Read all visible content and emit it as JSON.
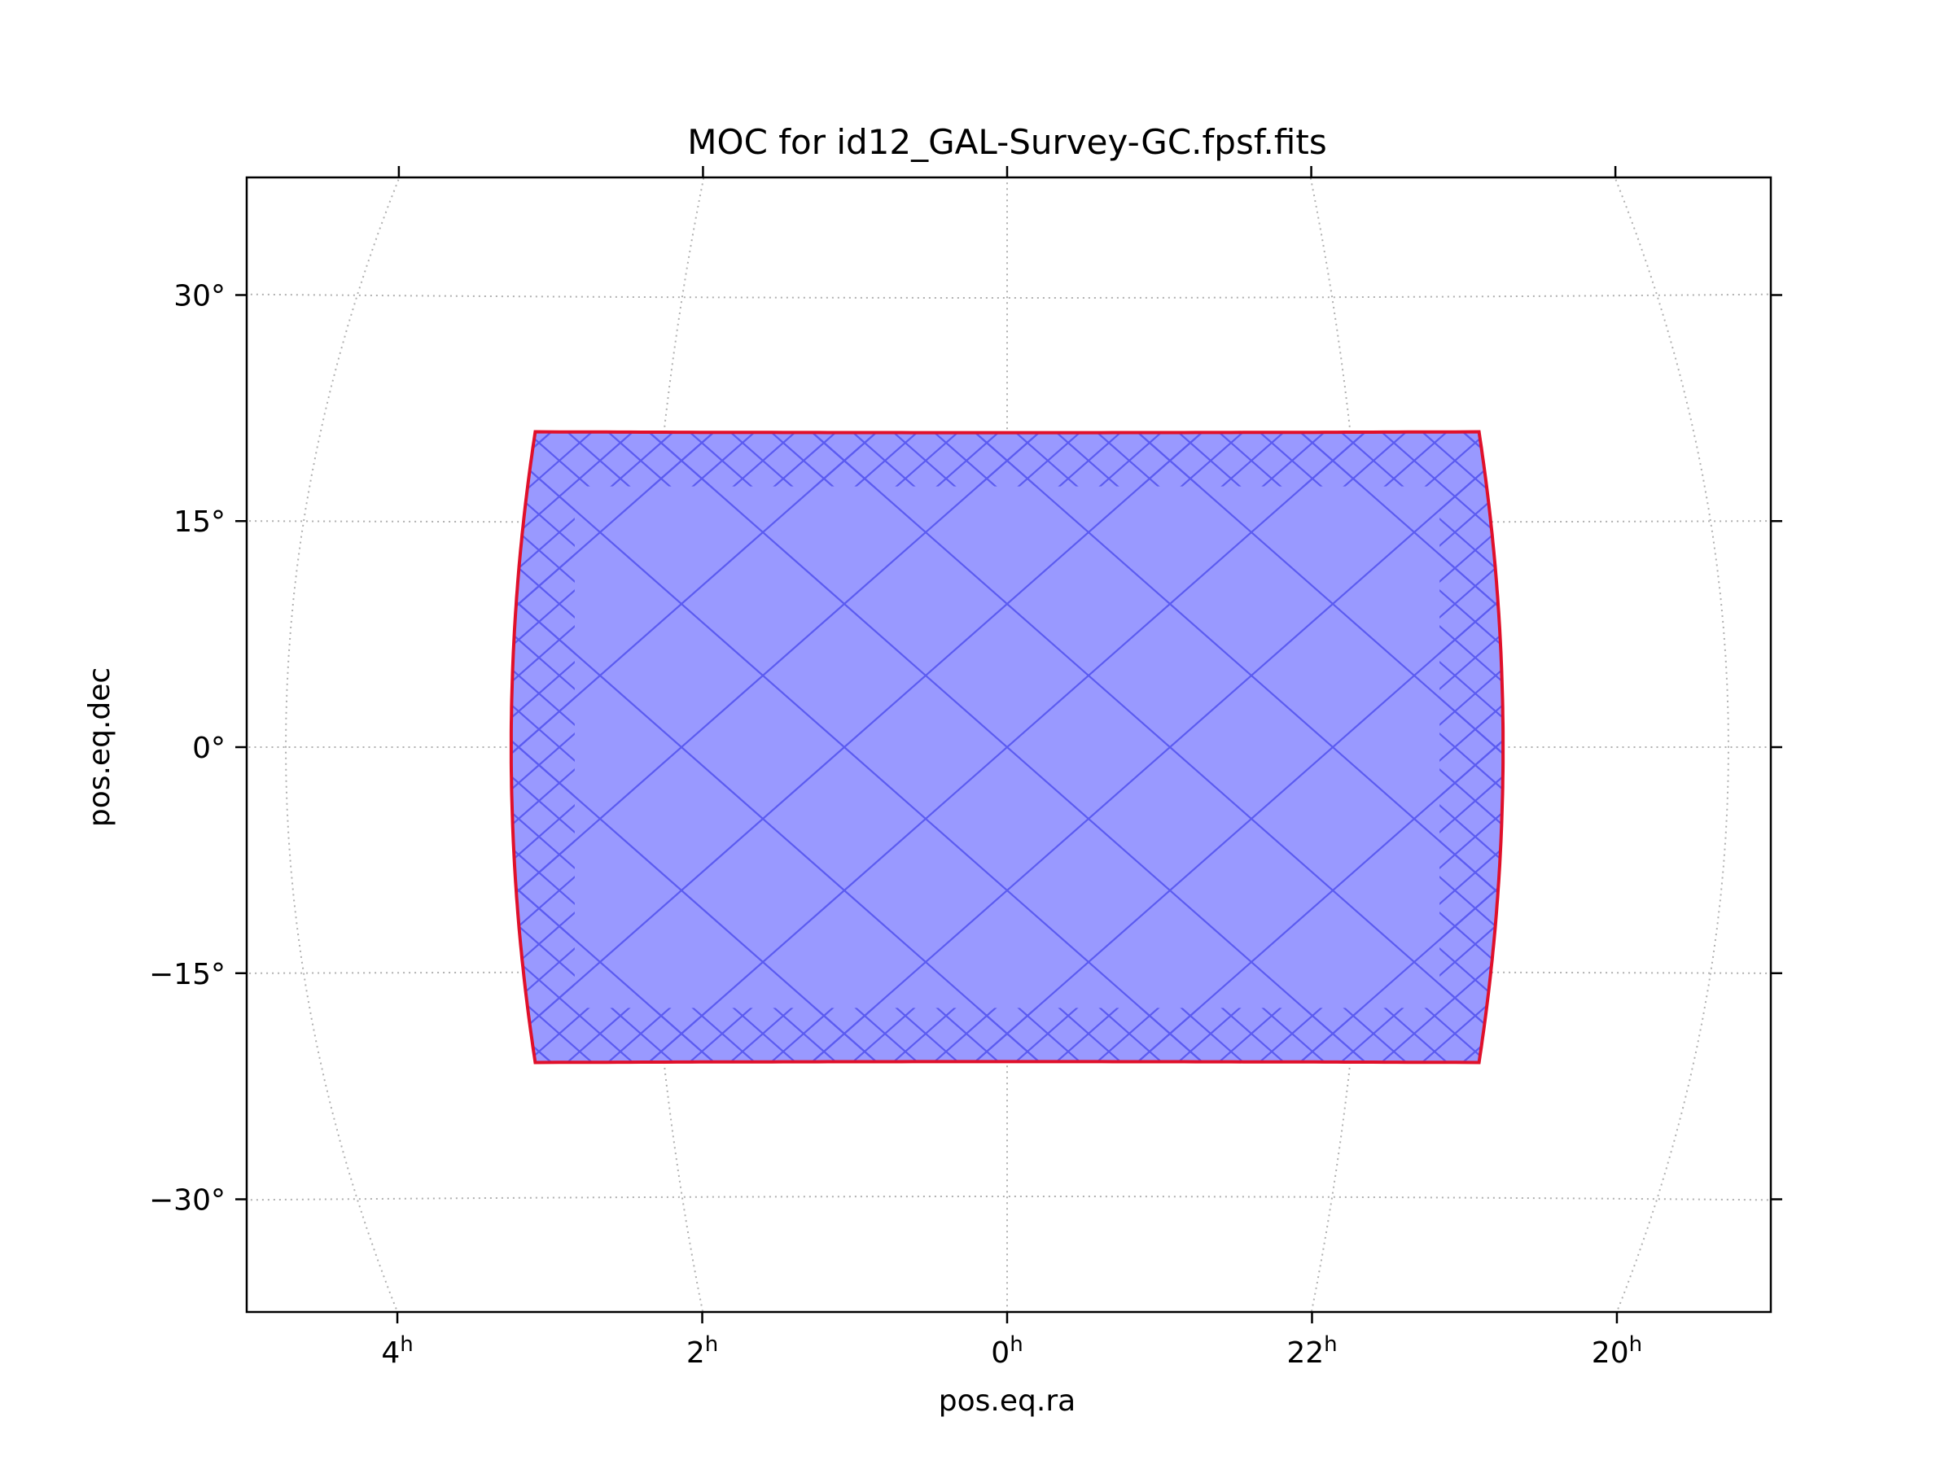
{
  "chart_data": {
    "type": "area",
    "title": "MOC for id12_GAL-Survey-GC.fpsf.fits",
    "xlabel": "pos.eq.ra",
    "ylabel": "pos.eq.dec",
    "projection": "cartesian sky plot (RA increases to the left)",
    "x_ticks": [
      {
        "hours": 4,
        "label": "4",
        "unit": "h"
      },
      {
        "hours": 2,
        "label": "2",
        "unit": "h"
      },
      {
        "hours": 0,
        "label": "0",
        "unit": "h"
      },
      {
        "hours": 22,
        "label": "22",
        "unit": "h"
      },
      {
        "hours": 20,
        "label": "20",
        "unit": "h"
      }
    ],
    "y_ticks": [
      {
        "deg": 30,
        "label": "30°"
      },
      {
        "deg": 15,
        "label": "15°"
      },
      {
        "deg": 0,
        "label": "0°"
      },
      {
        "deg": -15,
        "label": "−15°"
      },
      {
        "deg": -30,
        "label": "−30°"
      }
    ],
    "grid": true,
    "coverage": {
      "ra_range_hours": [
        2.75,
        21.25
      ],
      "dec_range_deg": [
        -21,
        21
      ],
      "fill_color": "#9999ff",
      "cell_edge_color": "#5b5bf0",
      "outline_color": "#e0102a"
    }
  }
}
